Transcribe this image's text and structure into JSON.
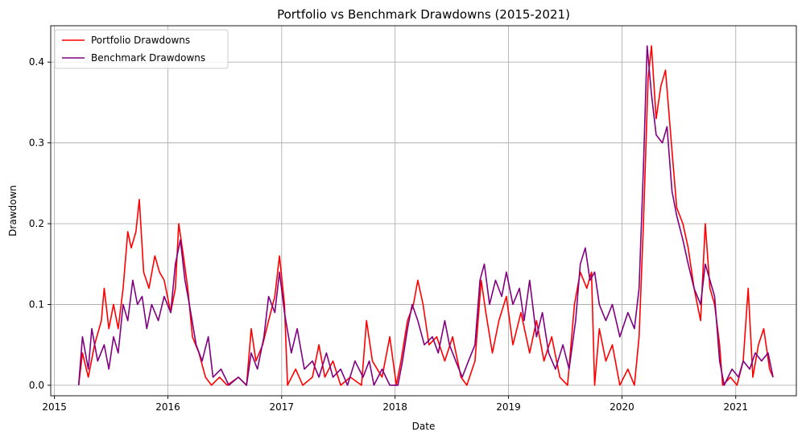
{
  "chart_data": {
    "type": "line",
    "title": "Portfolio vs Benchmark Drawdowns (2015-2021)",
    "xlabel": "Date",
    "ylabel": "Drawdown",
    "x_axis": "date",
    "xlim": [
      "2014-12-20",
      "2021-07-15"
    ],
    "ylim": [
      -0.013,
      0.445
    ],
    "x_ticks": [
      {
        "date": "2015-01-01",
        "label": "2015"
      },
      {
        "date": "2016-01-01",
        "label": "2016"
      },
      {
        "date": "2017-01-01",
        "label": "2017"
      },
      {
        "date": "2018-01-01",
        "label": "2018"
      },
      {
        "date": "2019-01-01",
        "label": "2019"
      },
      {
        "date": "2020-01-01",
        "label": "2020"
      },
      {
        "date": "2021-01-01",
        "label": "2021"
      }
    ],
    "y_ticks": [
      {
        "value": 0.0,
        "label": "0.0"
      },
      {
        "value": 0.1,
        "label": "0.1"
      },
      {
        "value": 0.2,
        "label": "0.2"
      },
      {
        "value": 0.3,
        "label": "0.3"
      },
      {
        "value": 0.4,
        "label": "0.4"
      }
    ],
    "grid": true,
    "legend_position": "top-left",
    "series": [
      {
        "name": "Portfolio Drawdowns",
        "color": "#ff0000",
        "points": [
          [
            "2015-03-20",
            0.0
          ],
          [
            "2015-04-01",
            0.04
          ],
          [
            "2015-04-20",
            0.01
          ],
          [
            "2015-05-10",
            0.05
          ],
          [
            "2015-06-01",
            0.08
          ],
          [
            "2015-06-10",
            0.12
          ],
          [
            "2015-06-25",
            0.07
          ],
          [
            "2015-07-10",
            0.1
          ],
          [
            "2015-07-25",
            0.07
          ],
          [
            "2015-08-10",
            0.12
          ],
          [
            "2015-08-25",
            0.19
          ],
          [
            "2015-09-05",
            0.17
          ],
          [
            "2015-09-20",
            0.19
          ],
          [
            "2015-10-01",
            0.23
          ],
          [
            "2015-10-15",
            0.14
          ],
          [
            "2015-11-01",
            0.12
          ],
          [
            "2015-11-20",
            0.16
          ],
          [
            "2015-12-05",
            0.14
          ],
          [
            "2015-12-20",
            0.13
          ],
          [
            "2016-01-10",
            0.09
          ],
          [
            "2016-01-25",
            0.12
          ],
          [
            "2016-02-05",
            0.2
          ],
          [
            "2016-02-20",
            0.16
          ],
          [
            "2016-03-05",
            0.12
          ],
          [
            "2016-03-20",
            0.06
          ],
          [
            "2016-04-10",
            0.04
          ],
          [
            "2016-05-01",
            0.01
          ],
          [
            "2016-05-20",
            0.0
          ],
          [
            "2016-06-15",
            0.01
          ],
          [
            "2016-07-10",
            0.0
          ],
          [
            "2016-08-15",
            0.01
          ],
          [
            "2016-09-10",
            0.0
          ],
          [
            "2016-09-25",
            0.07
          ],
          [
            "2016-10-10",
            0.03
          ],
          [
            "2016-11-01",
            0.05
          ],
          [
            "2016-11-20",
            0.08
          ],
          [
            "2016-12-10",
            0.11
          ],
          [
            "2016-12-25",
            0.16
          ],
          [
            "2017-01-10",
            0.1
          ],
          [
            "2017-01-20",
            0.0
          ],
          [
            "2017-02-15",
            0.02
          ],
          [
            "2017-03-10",
            0.0
          ],
          [
            "2017-04-10",
            0.01
          ],
          [
            "2017-05-01",
            0.05
          ],
          [
            "2017-05-20",
            0.01
          ],
          [
            "2017-06-15",
            0.03
          ],
          [
            "2017-07-10",
            0.0
          ],
          [
            "2017-08-10",
            0.01
          ],
          [
            "2017-09-15",
            0.0
          ],
          [
            "2017-10-01",
            0.08
          ],
          [
            "2017-10-20",
            0.03
          ],
          [
            "2017-11-20",
            0.01
          ],
          [
            "2017-12-15",
            0.06
          ],
          [
            "2018-01-05",
            0.0
          ],
          [
            "2018-01-20",
            0.03
          ],
          [
            "2018-02-10",
            0.08
          ],
          [
            "2018-03-01",
            0.1
          ],
          [
            "2018-03-15",
            0.13
          ],
          [
            "2018-04-01",
            0.1
          ],
          [
            "2018-04-20",
            0.05
          ],
          [
            "2018-05-15",
            0.06
          ],
          [
            "2018-06-10",
            0.03
          ],
          [
            "2018-07-05",
            0.06
          ],
          [
            "2018-08-01",
            0.01
          ],
          [
            "2018-08-20",
            0.0
          ],
          [
            "2018-09-15",
            0.03
          ],
          [
            "2018-10-05",
            0.13
          ],
          [
            "2018-10-20",
            0.09
          ],
          [
            "2018-11-10",
            0.04
          ],
          [
            "2018-12-01",
            0.08
          ],
          [
            "2018-12-25",
            0.11
          ],
          [
            "2019-01-15",
            0.05
          ],
          [
            "2019-02-10",
            0.09
          ],
          [
            "2019-03-10",
            0.04
          ],
          [
            "2019-04-01",
            0.08
          ],
          [
            "2019-04-25",
            0.03
          ],
          [
            "2019-05-20",
            0.06
          ],
          [
            "2019-06-15",
            0.01
          ],
          [
            "2019-07-10",
            0.0
          ],
          [
            "2019-08-01",
            0.1
          ],
          [
            "2019-08-20",
            0.14
          ],
          [
            "2019-09-10",
            0.12
          ],
          [
            "2019-09-25",
            0.14
          ],
          [
            "2019-10-05",
            0.0
          ],
          [
            "2019-10-20",
            0.07
          ],
          [
            "2019-11-10",
            0.03
          ],
          [
            "2019-12-01",
            0.05
          ],
          [
            "2019-12-25",
            0.0
          ],
          [
            "2020-01-20",
            0.02
          ],
          [
            "2020-02-10",
            0.0
          ],
          [
            "2020-02-25",
            0.06
          ],
          [
            "2020-03-10",
            0.2
          ],
          [
            "2020-03-25",
            0.38
          ],
          [
            "2020-04-05",
            0.42
          ],
          [
            "2020-04-20",
            0.33
          ],
          [
            "2020-05-05",
            0.37
          ],
          [
            "2020-05-20",
            0.39
          ],
          [
            "2020-06-10",
            0.29
          ],
          [
            "2020-06-25",
            0.22
          ],
          [
            "2020-07-15",
            0.2
          ],
          [
            "2020-08-01",
            0.17
          ],
          [
            "2020-08-20",
            0.12
          ],
          [
            "2020-09-10",
            0.08
          ],
          [
            "2020-09-25",
            0.2
          ],
          [
            "2020-10-10",
            0.12
          ],
          [
            "2020-10-25",
            0.1
          ],
          [
            "2020-11-10",
            0.05
          ],
          [
            "2020-11-20",
            0.0
          ],
          [
            "2020-12-15",
            0.01
          ],
          [
            "2021-01-05",
            0.0
          ],
          [
            "2021-01-25",
            0.03
          ],
          [
            "2021-02-10",
            0.12
          ],
          [
            "2021-02-25",
            0.01
          ],
          [
            "2021-03-15",
            0.05
          ],
          [
            "2021-04-01",
            0.07
          ],
          [
            "2021-04-20",
            0.02
          ],
          [
            "2021-05-01",
            0.01
          ]
        ]
      },
      {
        "name": "Benchmark Drawdowns",
        "color": "#800080",
        "points": [
          [
            "2015-03-20",
            0.0
          ],
          [
            "2015-04-01",
            0.06
          ],
          [
            "2015-04-20",
            0.02
          ],
          [
            "2015-05-01",
            0.07
          ],
          [
            "2015-05-20",
            0.03
          ],
          [
            "2015-06-10",
            0.05
          ],
          [
            "2015-06-25",
            0.02
          ],
          [
            "2015-07-10",
            0.06
          ],
          [
            "2015-07-25",
            0.04
          ],
          [
            "2015-08-10",
            0.1
          ],
          [
            "2015-08-25",
            0.08
          ],
          [
            "2015-09-10",
            0.13
          ],
          [
            "2015-09-25",
            0.1
          ],
          [
            "2015-10-10",
            0.11
          ],
          [
            "2015-10-25",
            0.07
          ],
          [
            "2015-11-10",
            0.1
          ],
          [
            "2015-12-01",
            0.08
          ],
          [
            "2015-12-20",
            0.11
          ],
          [
            "2016-01-10",
            0.09
          ],
          [
            "2016-01-25",
            0.15
          ],
          [
            "2016-02-10",
            0.18
          ],
          [
            "2016-02-25",
            0.13
          ],
          [
            "2016-03-10",
            0.1
          ],
          [
            "2016-04-01",
            0.05
          ],
          [
            "2016-04-20",
            0.03
          ],
          [
            "2016-05-10",
            0.06
          ],
          [
            "2016-05-25",
            0.01
          ],
          [
            "2016-06-20",
            0.02
          ],
          [
            "2016-07-15",
            0.0
          ],
          [
            "2016-08-15",
            0.01
          ],
          [
            "2016-09-10",
            0.0
          ],
          [
            "2016-09-25",
            0.04
          ],
          [
            "2016-10-15",
            0.02
          ],
          [
            "2016-11-05",
            0.06
          ],
          [
            "2016-11-20",
            0.11
          ],
          [
            "2016-12-10",
            0.09
          ],
          [
            "2016-12-25",
            0.14
          ],
          [
            "2017-01-10",
            0.09
          ],
          [
            "2017-02-01",
            0.04
          ],
          [
            "2017-02-20",
            0.07
          ],
          [
            "2017-03-15",
            0.02
          ],
          [
            "2017-04-10",
            0.03
          ],
          [
            "2017-05-01",
            0.01
          ],
          [
            "2017-05-25",
            0.04
          ],
          [
            "2017-06-15",
            0.01
          ],
          [
            "2017-07-10",
            0.02
          ],
          [
            "2017-08-01",
            0.0
          ],
          [
            "2017-08-25",
            0.03
          ],
          [
            "2017-09-20",
            0.01
          ],
          [
            "2017-10-10",
            0.03
          ],
          [
            "2017-10-25",
            0.0
          ],
          [
            "2017-11-20",
            0.02
          ],
          [
            "2017-12-15",
            0.0
          ],
          [
            "2018-01-10",
            0.0
          ],
          [
            "2018-01-25",
            0.03
          ],
          [
            "2018-02-10",
            0.07
          ],
          [
            "2018-02-25",
            0.1
          ],
          [
            "2018-03-15",
            0.08
          ],
          [
            "2018-04-05",
            0.05
          ],
          [
            "2018-05-01",
            0.06
          ],
          [
            "2018-05-20",
            0.04
          ],
          [
            "2018-06-10",
            0.08
          ],
          [
            "2018-06-25",
            0.05
          ],
          [
            "2018-07-15",
            0.03
          ],
          [
            "2018-08-05",
            0.01
          ],
          [
            "2018-08-25",
            0.03
          ],
          [
            "2018-09-15",
            0.05
          ],
          [
            "2018-10-01",
            0.13
          ],
          [
            "2018-10-15",
            0.15
          ],
          [
            "2018-11-01",
            0.1
          ],
          [
            "2018-11-20",
            0.13
          ],
          [
            "2018-12-10",
            0.11
          ],
          [
            "2018-12-25",
            0.14
          ],
          [
            "2019-01-15",
            0.1
          ],
          [
            "2019-02-05",
            0.12
          ],
          [
            "2019-02-20",
            0.08
          ],
          [
            "2019-03-10",
            0.13
          ],
          [
            "2019-04-01",
            0.06
          ],
          [
            "2019-04-20",
            0.09
          ],
          [
            "2019-05-10",
            0.04
          ],
          [
            "2019-06-01",
            0.02
          ],
          [
            "2019-06-25",
            0.05
          ],
          [
            "2019-07-15",
            0.02
          ],
          [
            "2019-08-05",
            0.08
          ],
          [
            "2019-08-20",
            0.15
          ],
          [
            "2019-09-05",
            0.17
          ],
          [
            "2019-09-20",
            0.13
          ],
          [
            "2019-10-05",
            0.14
          ],
          [
            "2019-10-20",
            0.1
          ],
          [
            "2019-11-10",
            0.08
          ],
          [
            "2019-12-01",
            0.1
          ],
          [
            "2019-12-25",
            0.06
          ],
          [
            "2020-01-20",
            0.09
          ],
          [
            "2020-02-10",
            0.07
          ],
          [
            "2020-02-25",
            0.12
          ],
          [
            "2020-03-10",
            0.27
          ],
          [
            "2020-03-22",
            0.42
          ],
          [
            "2020-04-05",
            0.36
          ],
          [
            "2020-04-20",
            0.31
          ],
          [
            "2020-05-10",
            0.3
          ],
          [
            "2020-05-25",
            0.32
          ],
          [
            "2020-06-10",
            0.24
          ],
          [
            "2020-06-25",
            0.21
          ],
          [
            "2020-07-15",
            0.18
          ],
          [
            "2020-08-01",
            0.15
          ],
          [
            "2020-08-20",
            0.12
          ],
          [
            "2020-09-10",
            0.1
          ],
          [
            "2020-09-25",
            0.15
          ],
          [
            "2020-10-10",
            0.13
          ],
          [
            "2020-10-25",
            0.11
          ],
          [
            "2020-11-10",
            0.03
          ],
          [
            "2020-11-25",
            0.0
          ],
          [
            "2020-12-20",
            0.02
          ],
          [
            "2021-01-10",
            0.01
          ],
          [
            "2021-01-25",
            0.03
          ],
          [
            "2021-02-15",
            0.02
          ],
          [
            "2021-03-05",
            0.04
          ],
          [
            "2021-03-25",
            0.03
          ],
          [
            "2021-04-15",
            0.04
          ],
          [
            "2021-05-01",
            0.01
          ]
        ]
      }
    ]
  }
}
